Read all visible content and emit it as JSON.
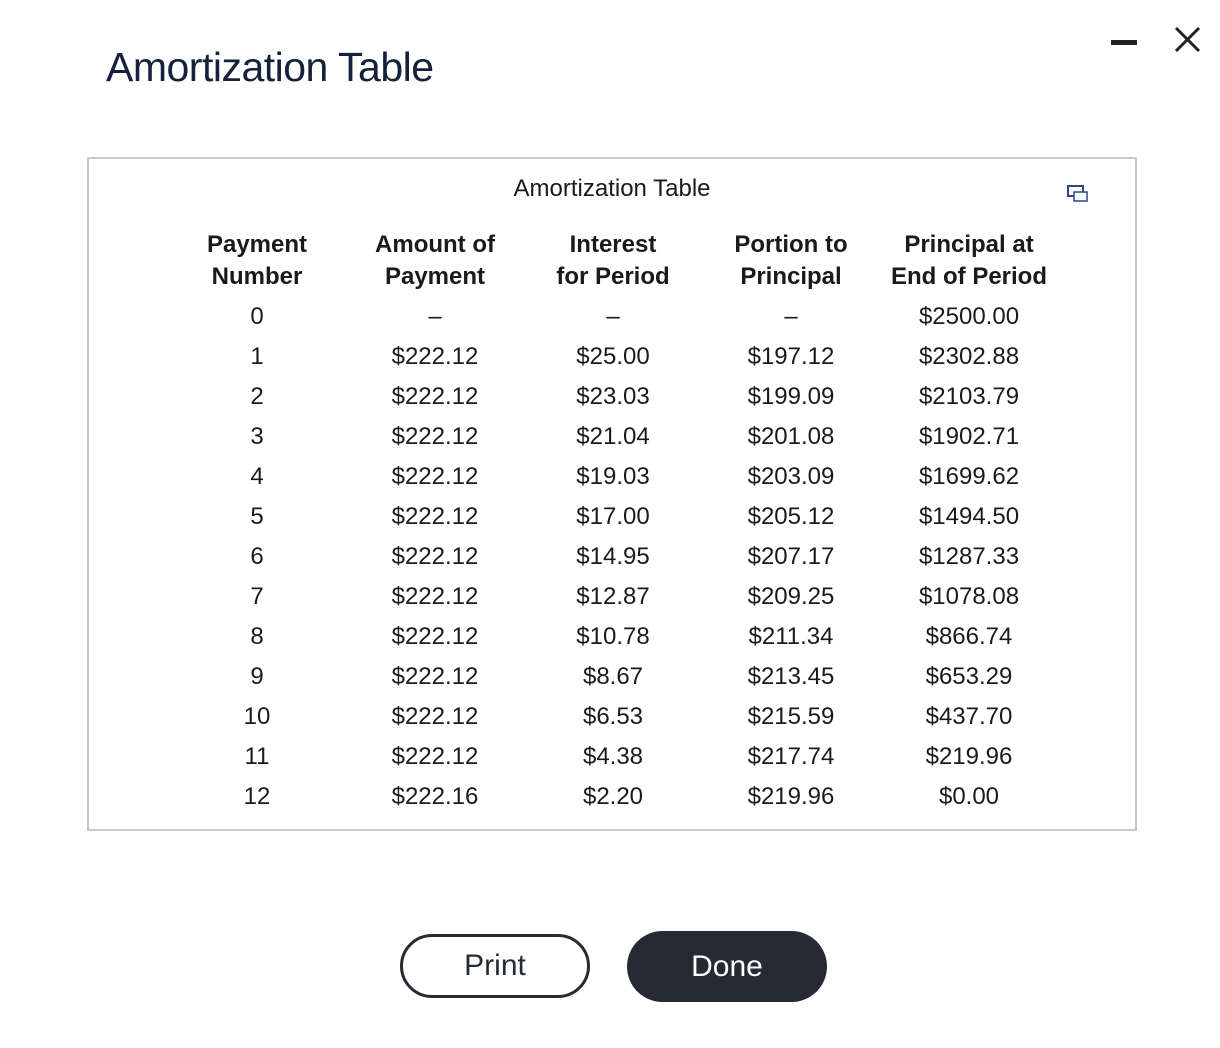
{
  "window": {
    "title": "Amortization Table"
  },
  "table": {
    "caption": "Amortization Table",
    "headers": [
      [
        "Payment",
        "Number"
      ],
      [
        "Amount of",
        "Payment"
      ],
      [
        "Interest",
        "for Period"
      ],
      [
        "Portion to",
        "Principal"
      ],
      [
        "Principal at",
        "End of Period"
      ]
    ],
    "rows": [
      [
        "0",
        "–",
        "–",
        "–",
        "$2500.00"
      ],
      [
        "1",
        "$222.12",
        "$25.00",
        "$197.12",
        "$2302.88"
      ],
      [
        "2",
        "$222.12",
        "$23.03",
        "$199.09",
        "$2103.79"
      ],
      [
        "3",
        "$222.12",
        "$21.04",
        "$201.08",
        "$1902.71"
      ],
      [
        "4",
        "$222.12",
        "$19.03",
        "$203.09",
        "$1699.62"
      ],
      [
        "5",
        "$222.12",
        "$17.00",
        "$205.12",
        "$1494.50"
      ],
      [
        "6",
        "$222.12",
        "$14.95",
        "$207.17",
        "$1287.33"
      ],
      [
        "7",
        "$222.12",
        "$12.87",
        "$209.25",
        "$1078.08"
      ],
      [
        "8",
        "$222.12",
        "$10.78",
        "$211.34",
        "$866.74"
      ],
      [
        "9",
        "$222.12",
        "$8.67",
        "$213.45",
        "$653.29"
      ],
      [
        "10",
        "$222.12",
        "$6.53",
        "$215.59",
        "$437.70"
      ],
      [
        "11",
        "$222.12",
        "$4.38",
        "$217.74",
        "$219.96"
      ],
      [
        "12",
        "$222.16",
        "$2.20",
        "$219.96",
        "$0.00"
      ]
    ]
  },
  "buttons": {
    "print": "Print",
    "done": "Done"
  }
}
